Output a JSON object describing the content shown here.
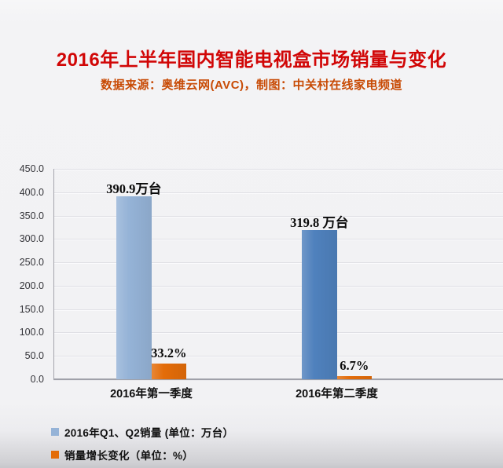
{
  "header": {
    "title": "2016年上半年国内智能电视盒市场销量与变化",
    "subtitle": "数据来源：奥维云网(AVC)，制图：中关村在线家电频道",
    "title_color": "#d10606",
    "subtitle_color": "#c84a04"
  },
  "chart_data": {
    "type": "bar",
    "title": "2016年上半年国内智能电视盒市场销量与变化",
    "source_note": "数据来源：奥维云网(AVC)，制图：中关村在线家电频道",
    "categories": [
      "2016年第一季度",
      "2016年第二季度"
    ],
    "series": [
      {
        "name": "2016年Q1、Q2销量 (单位：万台）",
        "unit": "万台",
        "values": [
          390.9,
          319.8
        ],
        "data_labels": [
          "390.9万台",
          "319.8 万台"
        ],
        "bar_colors": [
          "#95b3d7",
          "#4f81bd"
        ],
        "legend_color": "#95b3d7"
      },
      {
        "name": "销量增长变化（单位：%）",
        "unit": "%",
        "values": [
          33.2,
          6.7
        ],
        "data_labels": [
          "33.2%",
          "6.7%"
        ],
        "bar_colors": [
          "#e36c09",
          "#e36c09"
        ],
        "legend_color": "#e36c09"
      }
    ],
    "ylim": [
      0,
      450
    ],
    "ytick_step": 50,
    "yticks": [
      "450.0",
      "400.0",
      "350.0",
      "300.0",
      "250.0",
      "200.0",
      "150.0",
      "100.0",
      "50.0",
      "0.0"
    ],
    "grid": true,
    "legend_position": "bottom-left"
  }
}
